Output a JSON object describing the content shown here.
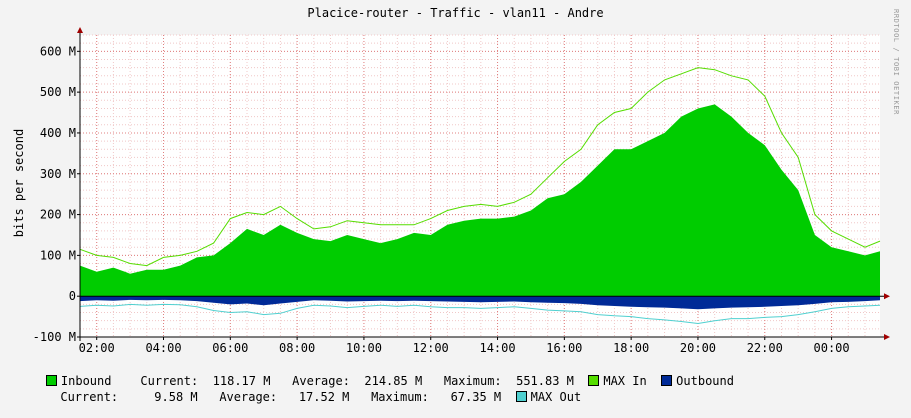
{
  "chart_data": {
    "type": "area",
    "title": "Placice-router - Traffic - vlan11 - Andre",
    "ylabel": "bits per second",
    "side_text": "RRDTOOL / TOBI OETIKER",
    "ylim": [
      -100,
      640
    ],
    "y_ticks": [
      {
        "v": 600,
        "label": "600 M"
      },
      {
        "v": 500,
        "label": "500 M"
      },
      {
        "v": 400,
        "label": "400 M"
      },
      {
        "v": 300,
        "label": "300 M"
      },
      {
        "v": 200,
        "label": "200 M"
      },
      {
        "v": 100,
        "label": "100 M"
      },
      {
        "v": 0,
        "label": "0"
      },
      {
        "v": -100,
        "label": "-100 M"
      }
    ],
    "x_range": [
      1.5,
      25.45
    ],
    "x_ticks": [
      {
        "h": 2,
        "label": "02:00"
      },
      {
        "h": 4,
        "label": "04:00"
      },
      {
        "h": 6,
        "label": "06:00"
      },
      {
        "h": 8,
        "label": "08:00"
      },
      {
        "h": 10,
        "label": "10:00"
      },
      {
        "h": 12,
        "label": "12:00"
      },
      {
        "h": 14,
        "label": "14:00"
      },
      {
        "h": 16,
        "label": "16:00"
      },
      {
        "h": 18,
        "label": "18:00"
      },
      {
        "h": 20,
        "label": "20:00"
      },
      {
        "h": 22,
        "label": "22:00"
      },
      {
        "h": 24,
        "label": "00:00"
      }
    ],
    "x_unit": "hour of day (values past 24 are after midnight)",
    "series": [
      {
        "name": "Inbound",
        "color": "#00cc00",
        "kind": "area",
        "points": [
          [
            1.5,
            75
          ],
          [
            2,
            60
          ],
          [
            2.5,
            70
          ],
          [
            3,
            55
          ],
          [
            3.5,
            65
          ],
          [
            4,
            65
          ],
          [
            4.5,
            75
          ],
          [
            5,
            95
          ],
          [
            5.5,
            100
          ],
          [
            6,
            130
          ],
          [
            6.5,
            165
          ],
          [
            7,
            150
          ],
          [
            7.5,
            175
          ],
          [
            8,
            155
          ],
          [
            8.5,
            140
          ],
          [
            9,
            135
          ],
          [
            9.5,
            150
          ],
          [
            10,
            140
          ],
          [
            10.5,
            130
          ],
          [
            11,
            140
          ],
          [
            11.5,
            155
          ],
          [
            12,
            150
          ],
          [
            12.5,
            175
          ],
          [
            13,
            185
          ],
          [
            13.5,
            190
          ],
          [
            14,
            190
          ],
          [
            14.5,
            195
          ],
          [
            15,
            210
          ],
          [
            15.5,
            240
          ],
          [
            16,
            250
          ],
          [
            16.5,
            280
          ],
          [
            17,
            320
          ],
          [
            17.5,
            360
          ],
          [
            18,
            360
          ],
          [
            18.5,
            380
          ],
          [
            19,
            400
          ],
          [
            19.5,
            440
          ],
          [
            20,
            460
          ],
          [
            20.5,
            470
          ],
          [
            21,
            440
          ],
          [
            21.5,
            400
          ],
          [
            22,
            370
          ],
          [
            22.5,
            310
          ],
          [
            23,
            260
          ],
          [
            23.5,
            150
          ],
          [
            24,
            120
          ],
          [
            24.5,
            110
          ],
          [
            25,
            100
          ],
          [
            25.45,
            110
          ]
        ]
      },
      {
        "name": "MAX In",
        "color": "#55dd00",
        "kind": "line",
        "points": [
          [
            1.5,
            115
          ],
          [
            2,
            100
          ],
          [
            2.5,
            95
          ],
          [
            3,
            80
          ],
          [
            3.5,
            75
          ],
          [
            4,
            95
          ],
          [
            4.5,
            100
          ],
          [
            5,
            110
          ],
          [
            5.5,
            130
          ],
          [
            6,
            190
          ],
          [
            6.5,
            205
          ],
          [
            7,
            200
          ],
          [
            7.5,
            220
          ],
          [
            8,
            190
          ],
          [
            8.5,
            165
          ],
          [
            9,
            170
          ],
          [
            9.5,
            185
          ],
          [
            10,
            180
          ],
          [
            10.5,
            175
          ],
          [
            11,
            175
          ],
          [
            11.5,
            175
          ],
          [
            12,
            190
          ],
          [
            12.5,
            210
          ],
          [
            13,
            220
          ],
          [
            13.5,
            225
          ],
          [
            14,
            220
          ],
          [
            14.5,
            230
          ],
          [
            15,
            250
          ],
          [
            15.5,
            290
          ],
          [
            16,
            330
          ],
          [
            16.5,
            360
          ],
          [
            17,
            420
          ],
          [
            17.5,
            450
          ],
          [
            18,
            460
          ],
          [
            18.5,
            500
          ],
          [
            19,
            530
          ],
          [
            19.5,
            545
          ],
          [
            20,
            560
          ],
          [
            20.5,
            555
          ],
          [
            21,
            540
          ],
          [
            21.5,
            530
          ],
          [
            22,
            490
          ],
          [
            22.5,
            400
          ],
          [
            23,
            340
          ],
          [
            23.5,
            200
          ],
          [
            24,
            160
          ],
          [
            24.5,
            140
          ],
          [
            25,
            120
          ],
          [
            25.45,
            135
          ]
        ]
      },
      {
        "name": "Outbound",
        "color": "#002a97",
        "kind": "area",
        "points": [
          [
            1.5,
            -12
          ],
          [
            2,
            -10
          ],
          [
            2.5,
            -11
          ],
          [
            3,
            -9
          ],
          [
            3.5,
            -10
          ],
          [
            4,
            -9
          ],
          [
            4.5,
            -10
          ],
          [
            5,
            -12
          ],
          [
            5.5,
            -16
          ],
          [
            6,
            -20
          ],
          [
            6.5,
            -18
          ],
          [
            7,
            -22
          ],
          [
            7.5,
            -18
          ],
          [
            8,
            -14
          ],
          [
            8.5,
            -10
          ],
          [
            9,
            -11
          ],
          [
            9.5,
            -13
          ],
          [
            10,
            -12
          ],
          [
            10.5,
            -11
          ],
          [
            11,
            -12
          ],
          [
            11.5,
            -11
          ],
          [
            12,
            -12
          ],
          [
            12.5,
            -13
          ],
          [
            13,
            -14
          ],
          [
            13.5,
            -15
          ],
          [
            14,
            -14
          ],
          [
            14.5,
            -13
          ],
          [
            15,
            -15
          ],
          [
            15.5,
            -16
          ],
          [
            16,
            -17
          ],
          [
            16.5,
            -19
          ],
          [
            17,
            -22
          ],
          [
            17.5,
            -24
          ],
          [
            18,
            -26
          ],
          [
            18.5,
            -27
          ],
          [
            19,
            -28
          ],
          [
            19.5,
            -30
          ],
          [
            20,
            -32
          ],
          [
            20.5,
            -30
          ],
          [
            21,
            -28
          ],
          [
            21.5,
            -27
          ],
          [
            22,
            -26
          ],
          [
            22.5,
            -24
          ],
          [
            23,
            -22
          ],
          [
            23.5,
            -19
          ],
          [
            24,
            -15
          ],
          [
            24.5,
            -14
          ],
          [
            25,
            -12
          ],
          [
            25.45,
            -10
          ]
        ]
      },
      {
        "name": "MAX Out",
        "color": "#50d0d0",
        "kind": "line",
        "points": [
          [
            1.5,
            -25
          ],
          [
            2,
            -22
          ],
          [
            2.5,
            -24
          ],
          [
            3,
            -20
          ],
          [
            3.5,
            -22
          ],
          [
            4,
            -20
          ],
          [
            4.5,
            -21
          ],
          [
            5,
            -26
          ],
          [
            5.5,
            -35
          ],
          [
            6,
            -40
          ],
          [
            6.5,
            -38
          ],
          [
            7,
            -45
          ],
          [
            7.5,
            -42
          ],
          [
            8,
            -30
          ],
          [
            8.5,
            -22
          ],
          [
            9,
            -24
          ],
          [
            9.5,
            -28
          ],
          [
            10,
            -25
          ],
          [
            10.5,
            -22
          ],
          [
            11,
            -25
          ],
          [
            11.5,
            -22
          ],
          [
            12,
            -26
          ],
          [
            12.5,
            -28
          ],
          [
            13,
            -28
          ],
          [
            13.5,
            -30
          ],
          [
            14,
            -28
          ],
          [
            14.5,
            -26
          ],
          [
            15,
            -30
          ],
          [
            15.5,
            -34
          ],
          [
            16,
            -36
          ],
          [
            16.5,
            -38
          ],
          [
            17,
            -45
          ],
          [
            17.5,
            -48
          ],
          [
            18,
            -50
          ],
          [
            18.5,
            -55
          ],
          [
            19,
            -58
          ],
          [
            19.5,
            -62
          ],
          [
            20,
            -67
          ],
          [
            20.5,
            -60
          ],
          [
            21,
            -55
          ],
          [
            21.5,
            -55
          ],
          [
            22,
            -52
          ],
          [
            22.5,
            -50
          ],
          [
            23,
            -45
          ],
          [
            23.5,
            -38
          ],
          [
            24,
            -30
          ],
          [
            24.5,
            -26
          ],
          [
            25,
            -24
          ],
          [
            25.45,
            -22
          ]
        ]
      }
    ],
    "legend": {
      "inbound": {
        "label": "Inbound",
        "color": "#00cc00",
        "current_label": "Current:",
        "current": "118.17 M",
        "average_label": "Average:",
        "average": "214.85 M",
        "maximum_label": "Maximum:",
        "maximum": "551.83 M"
      },
      "max_in": {
        "label": "MAX In",
        "color": "#55dd00"
      },
      "outbound": {
        "label": "Outbound",
        "color": "#002a97",
        "current_label": "Current:",
        "current": "9.58 M",
        "average_label": "Average:",
        "average": "17.52 M",
        "maximum_label": "Maximum:",
        "maximum": "67.35 M"
      },
      "max_out": {
        "label": "MAX Out",
        "color": "#50d0d0"
      }
    }
  }
}
